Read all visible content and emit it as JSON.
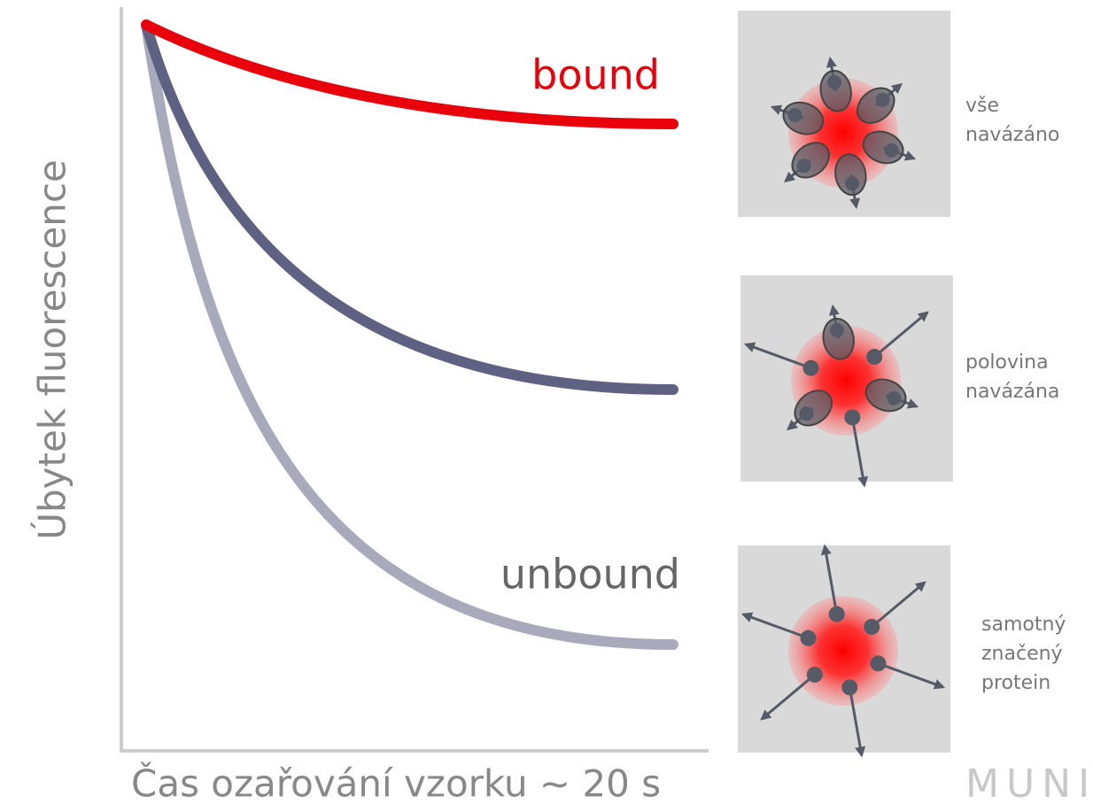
{
  "y_axis_label": "Úbytek fluorescence",
  "x_axis_label": "Čas ozařování vzorku ~ 20 s",
  "curves": {
    "bound": "bound",
    "unbound": "unbound"
  },
  "panels": [
    {
      "caption": [
        "vše",
        "navázáno"
      ]
    },
    {
      "caption": [
        "polovina",
        "navázána"
      ]
    },
    {
      "caption": [
        "samotný",
        "značený",
        "protein"
      ]
    }
  ],
  "logo": "MUNI"
}
